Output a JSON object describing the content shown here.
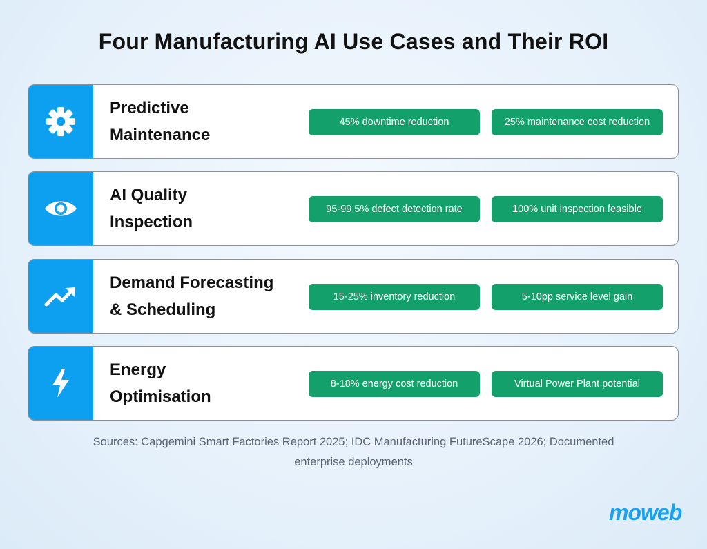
{
  "title": "Four Manufacturing AI Use Cases and Their ROI",
  "use_cases": [
    {
      "icon": "gear-icon",
      "title_line1": "Predictive",
      "title_line2": "Maintenance",
      "metrics": [
        "45% downtime reduction",
        "25% maintenance cost reduction"
      ]
    },
    {
      "icon": "eye-icon",
      "title_line1": "AI Quality",
      "title_line2": "Inspection",
      "metrics": [
        "95-99.5% defect detection rate",
        "100% unit inspection feasible"
      ]
    },
    {
      "icon": "trend-up-icon",
      "title_line1": "Demand Forecasting",
      "title_line2": "& Scheduling",
      "metrics": [
        "15-25% inventory reduction",
        "5-10pp service level gain"
      ]
    },
    {
      "icon": "lightning-bolt-icon",
      "title_line1": "Energy",
      "title_line2": "Optimisation",
      "metrics": [
        "8-18% energy cost reduction",
        "Virtual Power Plant potential"
      ]
    }
  ],
  "sources_line1": "Sources: Capgemini Smart Factories Report 2025; IDC Manufacturing FutureScape 2026; Documented",
  "sources_line2": "enterprise deployments",
  "logo": "moweb",
  "colors": {
    "icon_panel": "#0d9ff0",
    "pill": "#14a06b",
    "logo": "#1aa0f0"
  }
}
